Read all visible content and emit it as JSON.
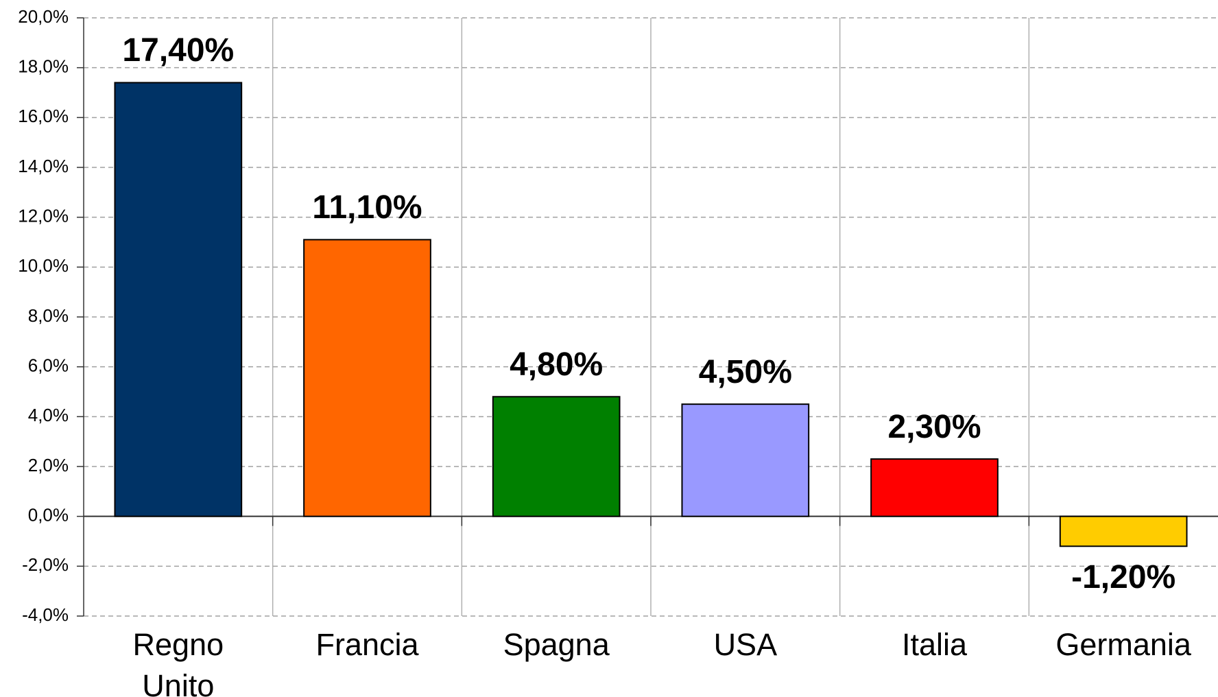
{
  "chart_data": {
    "type": "bar",
    "categories": [
      "Regno Unito",
      "Francia",
      "Spagna",
      "USA",
      "Italia",
      "Germania"
    ],
    "values": [
      17.4,
      11.1,
      4.8,
      4.5,
      2.3,
      -1.2
    ],
    "value_labels": [
      "17,40%",
      "11,10%",
      "4,80%",
      "4,50%",
      "2,30%",
      "-1,20%"
    ],
    "colors": [
      "#003366",
      "#ff6600",
      "#008000",
      "#9999ff",
      "#ff0000",
      "#ffcc00"
    ],
    "ylim": [
      -4,
      20
    ],
    "yticks": [
      {
        "value": -4,
        "label": "-4,0%"
      },
      {
        "value": -2,
        "label": "-2,0%"
      },
      {
        "value": 0,
        "label": "0,0%"
      },
      {
        "value": 2,
        "label": "2,0%"
      },
      {
        "value": 4,
        "label": "4,0%"
      },
      {
        "value": 6,
        "label": "6,0%"
      },
      {
        "value": 8,
        "label": "8,0%"
      },
      {
        "value": 10,
        "label": "10,0%"
      },
      {
        "value": 12,
        "label": "12,0%"
      },
      {
        "value": 14,
        "label": "14,0%"
      },
      {
        "value": 16,
        "label": "16,0%"
      },
      {
        "value": 18,
        "label": "18,0%"
      },
      {
        "value": 20,
        "label": "20,0%"
      }
    ],
    "grid": true
  }
}
